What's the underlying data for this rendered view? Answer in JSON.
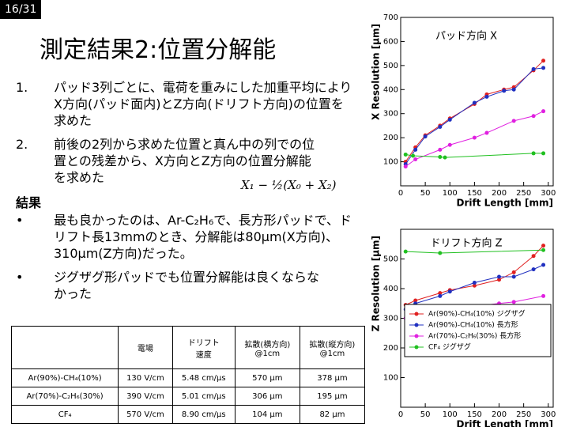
{
  "page_number": "16/31",
  "title": "測定結果2:位置分解能",
  "items": [
    {
      "marker": "1.",
      "text": "パッド3列ごとに、電荷を重みにした加重平均によりX方向(パッド面内)とZ方向(ドリフト方向)の位置を求めた"
    },
    {
      "marker": "2.",
      "text": "前後の2列から求めた位置と真ん中の列での位置との残差から、X方向とZ方向の位置分解能を求めた"
    }
  ],
  "formula": "X₁ − ½(X₀ + X₂)",
  "results_heading": "結果",
  "results": [
    {
      "marker": "•",
      "text": "最も良かったのは、Ar-C₂H₆で、長方形パッドで、ドリフト長13mmのとき、分解能は80μm(X方向)、310μm(Z方向)だった。"
    },
    {
      "marker": "•",
      "text": "ジグザグ形パッドでも位置分解能は良くならなかった"
    }
  ],
  "table": {
    "header": [
      "",
      "電場",
      "ドリフト\n速度",
      "拡散(横方向)\n@1cm",
      "拡散(縦方向)\n@1cm"
    ],
    "rows": [
      [
        "Ar(90%)-CH₄(10%)",
        "130 V/cm",
        "5.48 cm/μs",
        "570 μm",
        "378 μm"
      ],
      [
        "Ar(70%)-C₂H₆(30%)",
        "390 V/cm",
        "5.01 cm/μs",
        "306 μm",
        "195 μm"
      ],
      [
        "CF₄",
        "570 V/cm",
        "8.90 cm/μs",
        "104 μm",
        "82 μm"
      ]
    ]
  },
  "chart_data": [
    {
      "type": "line",
      "title": "パッド方向 X",
      "x_label": "Drift Length [mm]",
      "y_label": "X Resolution [μm]",
      "xlim": [
        0,
        310
      ],
      "xticks": [
        0,
        50,
        100,
        150,
        200,
        250,
        300
      ],
      "ylim": [
        0,
        700
      ],
      "yticks": [
        100,
        200,
        300,
        400,
        500,
        600,
        700
      ],
      "series": [
        {
          "color": "#e02020",
          "x": [
            10,
            30,
            50,
            80,
            100,
            150,
            175,
            210,
            230,
            270,
            290
          ],
          "values": [
            100,
            160,
            210,
            250,
            280,
            340,
            380,
            400,
            410,
            480,
            520
          ]
        },
        {
          "color": "#2030c0",
          "x": [
            10,
            30,
            50,
            80,
            100,
            150,
            175,
            210,
            230,
            270,
            290
          ],
          "values": [
            90,
            150,
            205,
            245,
            275,
            345,
            370,
            395,
            400,
            485,
            490
          ]
        },
        {
          "color": "#e020e0",
          "x": [
            10,
            30,
            80,
            100,
            150,
            175,
            230,
            270,
            290
          ],
          "values": [
            80,
            110,
            150,
            170,
            200,
            220,
            270,
            290,
            310
          ]
        },
        {
          "color": "#20c020",
          "x": [
            10,
            25,
            80,
            90,
            270,
            290
          ],
          "values": [
            130,
            125,
            120,
            118,
            135,
            135
          ]
        }
      ]
    },
    {
      "type": "line",
      "title": "ドリフト方向 Z",
      "x_label": "Drift Length [mm]",
      "y_label": "Z Resolution [μm]",
      "xlim": [
        0,
        310
      ],
      "xticks": [
        0,
        50,
        100,
        150,
        200,
        250,
        300
      ],
      "ylim": [
        0,
        600
      ],
      "yticks": [
        100,
        200,
        300,
        400,
        500
      ],
      "series": [
        {
          "name": "Ar(90%)-CH₄(10%) ジグザグ",
          "color": "#e02020",
          "x": [
            10,
            30,
            80,
            100,
            150,
            200,
            230,
            270,
            290
          ],
          "values": [
            345,
            360,
            385,
            395,
            410,
            430,
            455,
            510,
            545
          ]
        },
        {
          "name": "Ar(90%)-CH₄(10%) 長方形",
          "color": "#2030c0",
          "x": [
            10,
            30,
            80,
            100,
            150,
            200,
            230,
            270,
            290
          ],
          "values": [
            330,
            350,
            375,
            390,
            420,
            440,
            440,
            465,
            480
          ]
        },
        {
          "name": "Ar(70%)-C₂H₆(30%) 長方形",
          "color": "#e020e0",
          "x": [
            10,
            30,
            80,
            100,
            150,
            200,
            230,
            290
          ],
          "values": [
            300,
            310,
            325,
            330,
            340,
            350,
            355,
            375
          ]
        },
        {
          "name": "CF₄ ジグザグ",
          "color": "#20c020",
          "x": [
            10,
            80,
            290
          ],
          "values": [
            525,
            520,
            530
          ]
        }
      ]
    }
  ]
}
